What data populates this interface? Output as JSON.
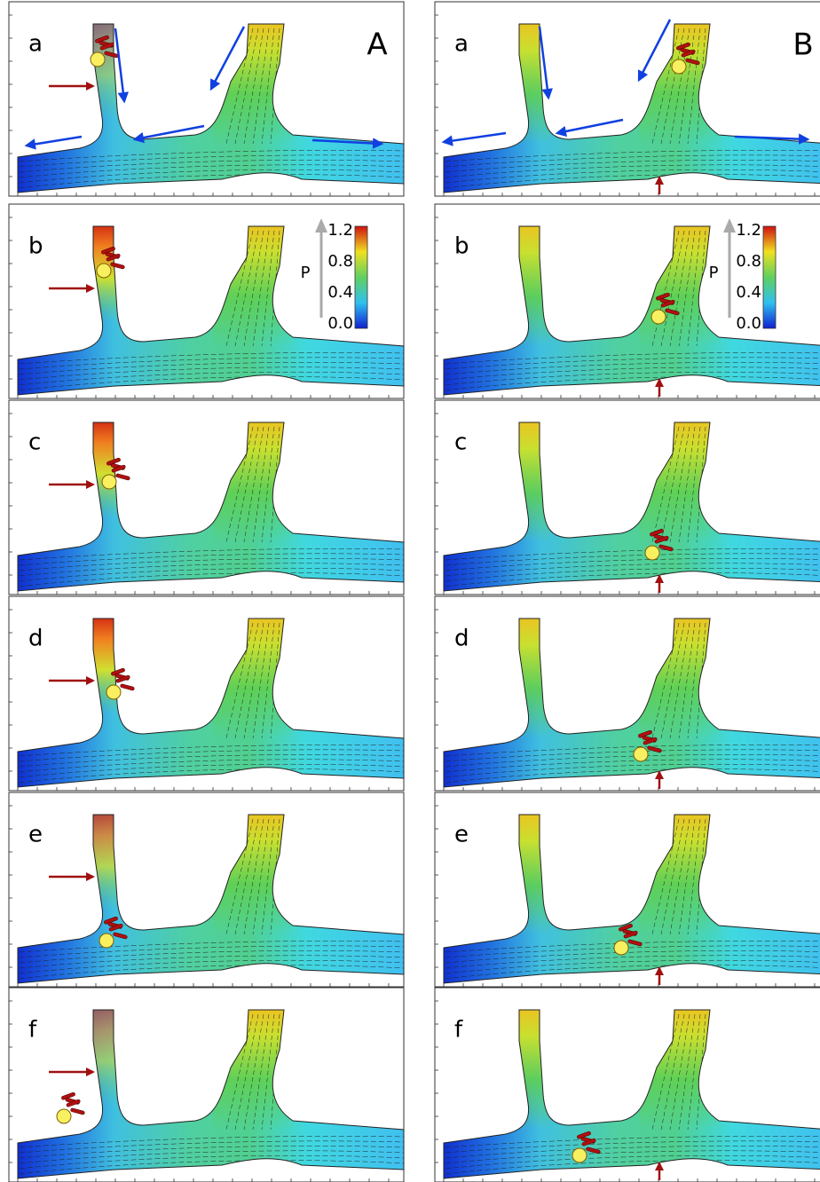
{
  "columns": [
    {
      "label": "A",
      "panels": [
        "a",
        "b",
        "c",
        "d",
        "e",
        "f"
      ]
    },
    {
      "label": "B",
      "panels": [
        "a",
        "b",
        "c",
        "d",
        "e",
        "f"
      ]
    }
  ],
  "colorbar": {
    "label": "P",
    "ticks": [
      "1.2",
      "0.8",
      "0.4",
      "0.0"
    ]
  }
}
